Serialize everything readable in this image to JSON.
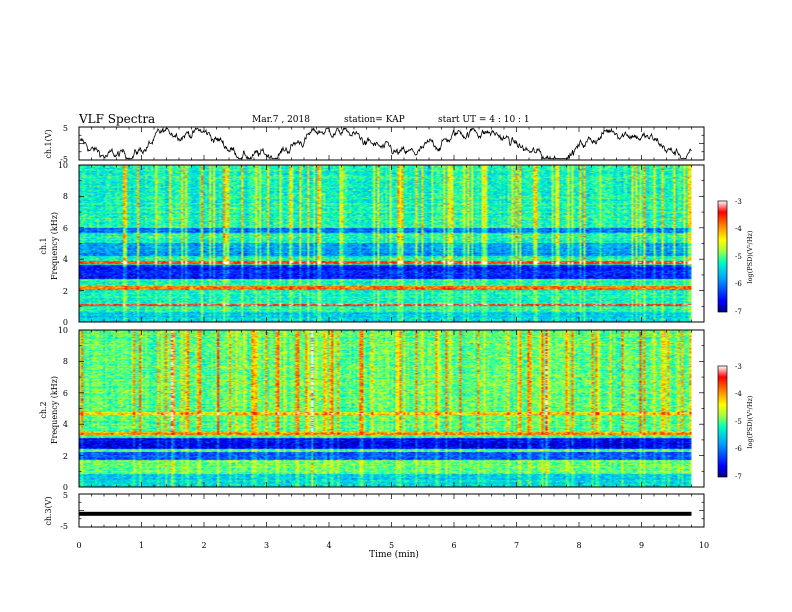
{
  "header": {
    "title": "VLF Spectra",
    "date": "Mar.7 , 2018",
    "station": "station= KAP",
    "start": "start  UT =  4 : 10 : 1"
  },
  "chart_data": [
    {
      "type": "line",
      "panel": "ch1-waveform",
      "ylabel": "ch.1(V)",
      "ylim": [
        -5,
        5
      ],
      "yticks": [
        "5",
        "-5"
      ],
      "xlim": [
        0,
        10
      ],
      "color": "#000000"
    },
    {
      "type": "heatmap",
      "panel": "ch1-spectrogram",
      "ylabel_line1": "ch.1",
      "ylabel_line2": "Frequency (kHz)",
      "ylim": [
        0,
        10
      ],
      "yticks": [
        "0",
        "2",
        "4",
        "6",
        "8",
        "10"
      ],
      "xlim": [
        0,
        9.8
      ],
      "colorbar": {
        "label": "log(PSD)(V²/Hz)",
        "range": [
          -7,
          -3
        ],
        "ticks": [
          "-3",
          "-4",
          "-5",
          "-6",
          "-7"
        ],
        "colors": [
          "#000080",
          "#0000ff",
          "#00a0ff",
          "#00ffc0",
          "#a0ff40",
          "#ffff00",
          "#ff8000",
          "#ff0000",
          "#ffffff"
        ]
      },
      "dominant_level": -5.2,
      "horizontal_bands_khz": [
        {
          "from": 0.0,
          "to": 0.6,
          "level": -5.5
        },
        {
          "from": 1.0,
          "to": 1.1,
          "level": -3.5
        },
        {
          "from": 2.0,
          "to": 2.3,
          "level": -3.8
        },
        {
          "from": 2.7,
          "to": 3.6,
          "level": -6.5
        },
        {
          "from": 3.7,
          "to": 3.9,
          "level": -3.6
        },
        {
          "from": 4.2,
          "to": 5.0,
          "level": -5.8
        },
        {
          "from": 5.7,
          "to": 6.0,
          "level": -6.0
        }
      ]
    },
    {
      "type": "heatmap",
      "panel": "ch2-spectrogram",
      "ylabel_line1": "ch.2",
      "ylabel_line2": "Frequency (kHz)",
      "ylim": [
        0,
        10
      ],
      "yticks": [
        "0",
        "2",
        "4",
        "6",
        "8",
        "10"
      ],
      "xlim": [
        0,
        9.8
      ],
      "colorbar": {
        "label": "log(PSD)(V²/Hz)",
        "range": [
          -7,
          -3
        ],
        "ticks": [
          "-3",
          "-4",
          "-5",
          "-6",
          "-7"
        ],
        "colors": [
          "#000080",
          "#0000ff",
          "#00a0ff",
          "#00ffc0",
          "#a0ff40",
          "#ffff00",
          "#ff8000",
          "#ff0000",
          "#ffffff"
        ]
      },
      "dominant_level": -5.0,
      "horizontal_bands_khz": [
        {
          "from": 0.0,
          "to": 0.8,
          "level": -5.5
        },
        {
          "from": 1.7,
          "to": 2.2,
          "level": -6.2
        },
        {
          "from": 2.4,
          "to": 3.1,
          "level": -6.6
        },
        {
          "from": 3.3,
          "to": 3.5,
          "level": -4.0
        },
        {
          "from": 4.6,
          "to": 4.8,
          "level": -4.3
        }
      ]
    },
    {
      "type": "line",
      "panel": "ch3-waveform",
      "ylabel": "ch.3(V)",
      "ylim": [
        -5,
        5
      ],
      "yticks": [
        "5",
        "-5"
      ],
      "xlim": [
        0,
        10
      ],
      "constant_value": -1,
      "color": "#000000"
    }
  ],
  "xaxis": {
    "label": "Time  (min)",
    "ticks": [
      "0",
      "1",
      "2",
      "3",
      "4",
      "5",
      "6",
      "7",
      "8",
      "9",
      "10"
    ],
    "range": [
      0,
      10
    ]
  }
}
